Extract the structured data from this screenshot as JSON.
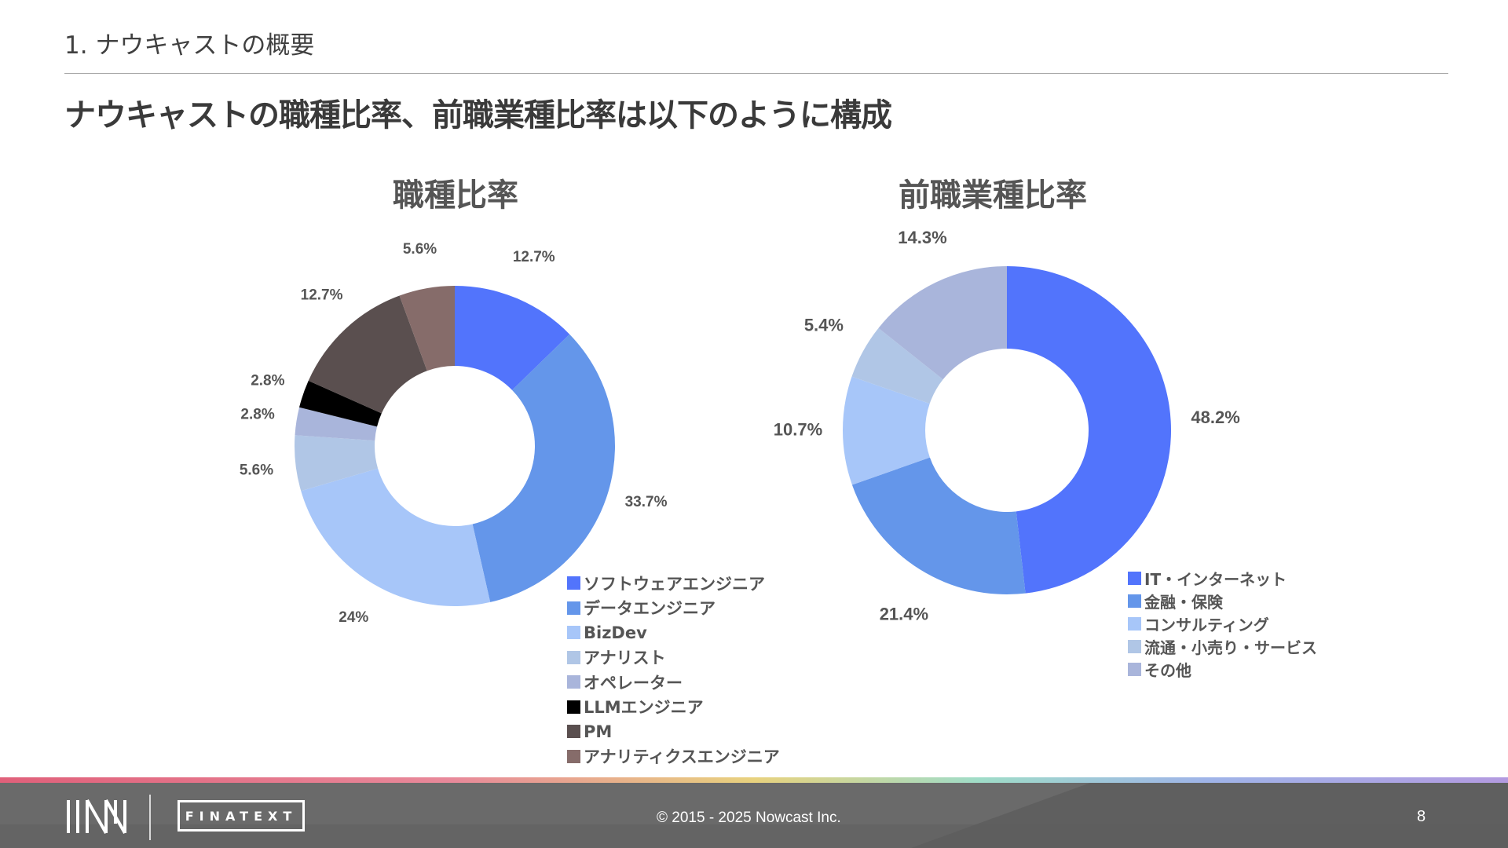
{
  "header": {
    "section_title": "1. ナウキャストの概要",
    "headline": "ナウキャストの職種比率、前職業種比率は以下のように構成"
  },
  "chart_data": [
    {
      "type": "pie",
      "title": "職種比率",
      "categories": [
        "ソフトウェアエンジニア",
        "データエンジニア",
        "BizDev",
        "アナリスト",
        "オペレーター",
        "LLMエンジニア",
        "PM",
        "アナリティクスエンジニア"
      ],
      "values": [
        12.7,
        33.7,
        24,
        5.6,
        2.8,
        2.8,
        12.7,
        5.6
      ],
      "labels": [
        "12.7%",
        "33.7%",
        "24%",
        "5.6%",
        "2.8%",
        "2.8%",
        "12.7%",
        "5.6%"
      ],
      "colors": [
        "#5274fc",
        "#6496ea",
        "#a7c6f9",
        "#b0c6e6",
        "#a9b5db",
        "#000000",
        "#5a4f4f",
        "#866c6a"
      ],
      "hole": "donut",
      "legend_position": "bottom-right"
    },
    {
      "type": "pie",
      "title": "前職業種比率",
      "categories": [
        "IT・インターネット",
        "金融・保険",
        "コンサルティング",
        "流通・小売り・サービス",
        "その他"
      ],
      "values": [
        48.2,
        21.4,
        10.7,
        5.4,
        14.3
      ],
      "labels": [
        "48.2%",
        "21.4%",
        "10.7%",
        "5.4%",
        "14.3%"
      ],
      "colors": [
        "#5274fc",
        "#6496ea",
        "#a7c6f9",
        "#b0c6e6",
        "#a9b5db"
      ],
      "hole": "donut",
      "legend_position": "bottom-right"
    }
  ],
  "footer": {
    "logo_text": "FINATEXT",
    "copyright": "© 2015 - 2025 Nowcast Inc.",
    "page_number": "8"
  }
}
